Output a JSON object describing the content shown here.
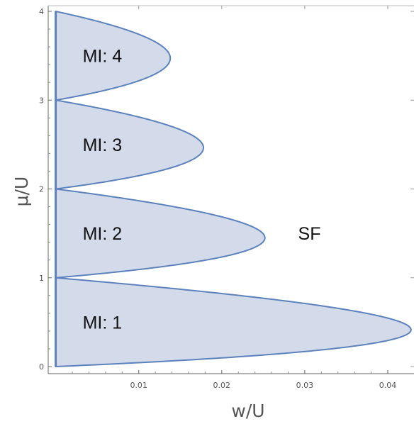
{
  "chart_data": {
    "type": "area",
    "title": "",
    "xlabel": "w/U",
    "ylabel": "μ/U",
    "xlim": [
      0.0,
      0.043
    ],
    "ylim": [
      0,
      4
    ],
    "x_ticks": [
      0.01,
      0.02,
      0.03,
      0.04
    ],
    "x_tick_labels": [
      "0.01",
      "0.02",
      "0.03",
      "0.04"
    ],
    "y_ticks": [
      0,
      1,
      2,
      3,
      4
    ],
    "y_tick_labels": [
      "0",
      "1",
      "2",
      "3",
      "4"
    ],
    "grid": false,
    "fill_color": "#d3dbea",
    "line_color": "#5b82bd",
    "series": [
      {
        "name": "MI: 1",
        "n": 1,
        "mu_range": [
          0,
          1
        ],
        "tip": {
          "w": 0.0428,
          "mu": 0.41
        }
      },
      {
        "name": "MI: 2",
        "n": 2,
        "mu_range": [
          1,
          2
        ],
        "tip": {
          "w": 0.0252,
          "mu": 1.45
        }
      },
      {
        "name": "MI: 3",
        "n": 3,
        "mu_range": [
          2,
          3
        ],
        "tip": {
          "w": 0.0178,
          "mu": 2.46
        }
      },
      {
        "name": "MI: 4",
        "n": 4,
        "mu_range": [
          3,
          4
        ],
        "tip": {
          "w": 0.0138,
          "mu": 3.47
        }
      }
    ],
    "annotations": [
      {
        "text": "SF",
        "w": 0.0292,
        "mu": 1.5
      }
    ]
  }
}
